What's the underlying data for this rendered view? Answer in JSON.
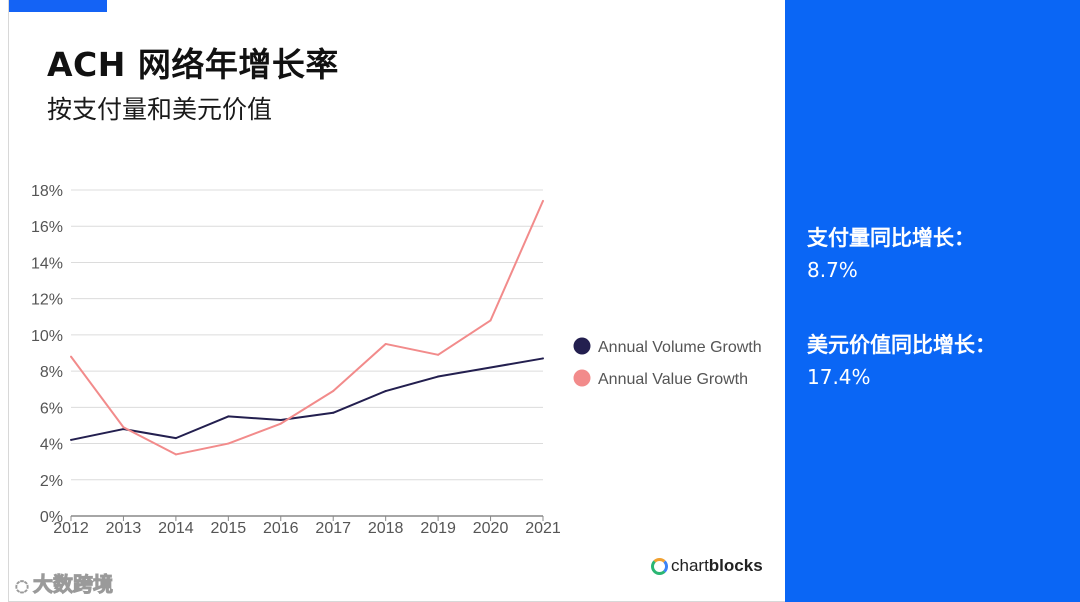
{
  "slide": {
    "title": "ACH 网络年增长率",
    "subtitle": "按支付量和美元价值",
    "accent_color": "#1463f5"
  },
  "chart_data": {
    "type": "line",
    "title": "",
    "xlabel": "",
    "ylabel": "",
    "x": [
      2012,
      2013,
      2014,
      2015,
      2016,
      2017,
      2018,
      2019,
      2020,
      2021
    ],
    "x_tick_labels": [
      "2012",
      "2013",
      "2014",
      "2015",
      "2016",
      "2017",
      "2018",
      "2019",
      "2020",
      "2021"
    ],
    "ylim": [
      0,
      18
    ],
    "y_ticks": [
      0,
      2,
      4,
      6,
      8,
      10,
      12,
      14,
      16,
      18
    ],
    "y_tick_labels": [
      "0%",
      "2%",
      "4%",
      "6%",
      "8%",
      "10%",
      "12%",
      "14%",
      "16%",
      "18%"
    ],
    "grid": true,
    "legend_position": "right",
    "series": [
      {
        "name": "Annual Volume Growth",
        "color": "#231f4f",
        "values": [
          4.2,
          4.8,
          4.3,
          5.5,
          5.3,
          5.7,
          6.9,
          7.7,
          8.2,
          8.7
        ]
      },
      {
        "name": "Annual Value Growth",
        "color": "#f28b8b",
        "values": [
          8.8,
          4.9,
          3.4,
          4.0,
          5.1,
          6.9,
          9.5,
          8.9,
          10.8,
          17.4
        ]
      }
    ]
  },
  "branding": {
    "chart_logo_prefix": "chart",
    "chart_logo_suffix": "blocks",
    "watermark": "大数跨境"
  },
  "sidebar": {
    "background": "#0a66f5",
    "stats": [
      {
        "label": "支付量同比增长：",
        "value": "8.7%"
      },
      {
        "label": "美元价值同比增长：",
        "value": "17.4%"
      }
    ]
  }
}
